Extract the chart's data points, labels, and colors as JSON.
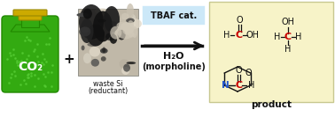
{
  "bg_color": "#ffffff",
  "product_bg_color": "#f7f3c8",
  "product_bg_border": "#c8c890",
  "arrow_color": "#111111",
  "tbaf_box_color": "#cce8f8",
  "tbaf_text": "TBAF cat.",
  "h2o_text": "H₂O",
  "morpholine_text": "(morpholine)",
  "plus_text": "+",
  "waste_si_text": "waste Si",
  "waste_si_text2": "(reductant)",
  "product_label": "product",
  "co2_text": "CO₂",
  "co2_bg": "#33aa11",
  "co2_dark": "#228800",
  "co2_text_color": "#ffffff",
  "dot_color": "#55cc33",
  "nozzle_color": "#ccaa00",
  "nozzle_dark": "#998800",
  "red_C": "#cc0000",
  "blue_N": "#2255cc",
  "black": "#111111",
  "si_bg": "#c0b8a8",
  "si_dark1": "#111111",
  "si_dark2": "#222222",
  "si_dark3": "#555555",
  "si_light": "#d8d0c0"
}
